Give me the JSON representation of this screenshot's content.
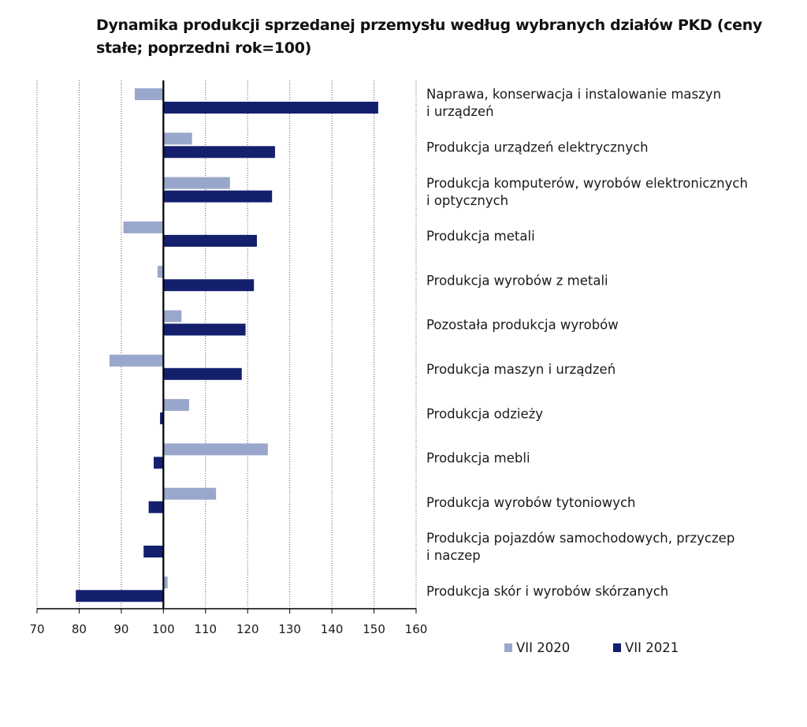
{
  "title": "Dynamika produkcji sprzedanej przemysłu według wybranych działów PKD (ceny stałe; poprzedni rok=100)",
  "chart_data": {
    "type": "bar",
    "orientation": "horizontal",
    "baseline": 100,
    "xlim": [
      70,
      160
    ],
    "xticks": [
      "70",
      "80",
      "90",
      "100",
      "110",
      "120",
      "130",
      "140",
      "150",
      "160"
    ],
    "grid": true,
    "legend_position": "bottom",
    "categories": [
      [
        "Naprawa, konserwacja i instalowanie maszyn",
        "i urządzeń"
      ],
      [
        "Produkcja urządzeń elektrycznych"
      ],
      [
        "Produkcja komputerów, wyrobów elektronicznych",
        "i optycznych"
      ],
      [
        "Produkcja metali"
      ],
      [
        "Produkcja wyrobów z metali"
      ],
      [
        "Pozostała produkcja wyrobów"
      ],
      [
        "Produkcja maszyn i urządzeń"
      ],
      [
        "Produkcja odzieży"
      ],
      [
        "Produkcja mebli"
      ],
      [
        "Produkcja wyrobów tytoniowych"
      ],
      [
        "Produkcja pojazdów samochodowych, przyczep",
        "i naczep"
      ],
      [
        "Produkcja skór i wyrobów skórzanych"
      ]
    ],
    "series": [
      {
        "name": "VII 2020",
        "color": "#9aa7cc",
        "values": [
          93.2,
          106.8,
          115.8,
          90.5,
          98.6,
          104.3,
          87.2,
          106.1,
          124.8,
          112.5,
          100.0,
          101.0
        ]
      },
      {
        "name": "VII 2021",
        "color": "#141f6e",
        "values": [
          151.0,
          126.5,
          125.8,
          122.2,
          121.5,
          119.5,
          118.6,
          99.2,
          97.7,
          96.5,
          95.3,
          79.2
        ]
      }
    ]
  }
}
